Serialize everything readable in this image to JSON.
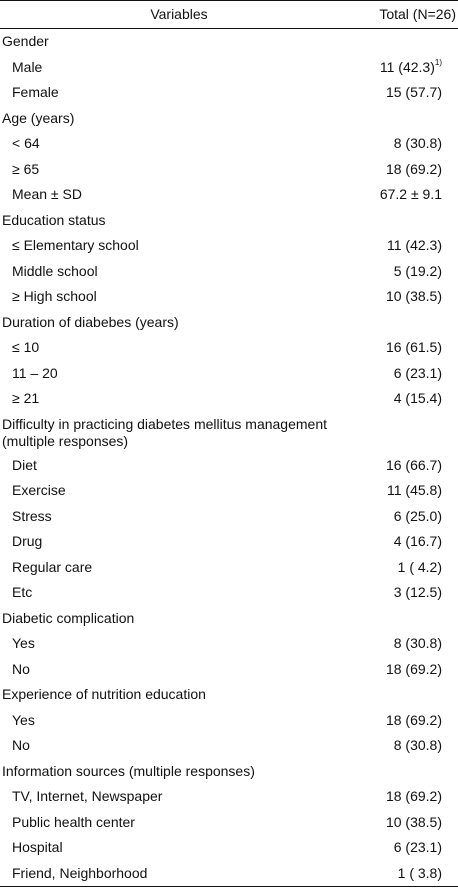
{
  "header": {
    "variables": "Variables",
    "total": "Total (N=26)"
  },
  "sections": [
    {
      "label": "Gender",
      "rows": [
        {
          "label": "Male",
          "value": "11 (42.3)",
          "note": "1)"
        },
        {
          "label": "Female",
          "value": "15 (57.7)"
        }
      ]
    },
    {
      "label": "Age (years)",
      "rows": [
        {
          "label": "< 64",
          "value": "8 (30.8)"
        },
        {
          "label": "≥ 65",
          "value": "18 (69.2)"
        },
        {
          "label": "Mean ± SD",
          "value": "67.2 ± 9.1"
        }
      ]
    },
    {
      "label": "Education status",
      "rows": [
        {
          "label": "≤ Elementary school",
          "value": "11 (42.3)"
        },
        {
          "label": "Middle school",
          "value": "5 (19.2)"
        },
        {
          "label": "≥ High school",
          "value": "10 (38.5)"
        }
      ]
    },
    {
      "label": "Duration of diabebes (years)",
      "rows": [
        {
          "label": "≤ 10",
          "value": "16 (61.5)"
        },
        {
          "label": "11 – 20",
          "value": "6 (23.1)"
        },
        {
          "label": "≥ 21",
          "value": "4 (15.4)"
        }
      ]
    },
    {
      "label": "Difficulty in practicing diabetes mellitus management (multiple responses)",
      "rows": [
        {
          "label": "Diet",
          "value": "16 (66.7)"
        },
        {
          "label": "Exercise",
          "value": "11 (45.8)"
        },
        {
          "label": "Stress",
          "value": "6 (25.0)"
        },
        {
          "label": "Drug",
          "value": "4 (16.7)"
        },
        {
          "label": "Regular care",
          "value": "1 (  4.2)"
        },
        {
          "label": "Etc",
          "value": "3 (12.5)"
        }
      ]
    },
    {
      "label": "Diabetic complication",
      "rows": [
        {
          "label": "Yes",
          "value": "8 (30.8)"
        },
        {
          "label": "No",
          "value": "18 (69.2)"
        }
      ]
    },
    {
      "label": "Experience of nutrition education",
      "rows": [
        {
          "label": "Yes",
          "value": "18 (69.2)"
        },
        {
          "label": "No",
          "value": "8 (30.8)"
        }
      ]
    },
    {
      "label": "Information sources (multiple responses)",
      "rows": [
        {
          "label": "TV, Internet, Newspaper",
          "value": "18 (69.2)"
        },
        {
          "label": "Public health center",
          "value": "10 (38.5)"
        },
        {
          "label": "Hospital",
          "value": "6 (23.1)"
        },
        {
          "label": "Friend, Neighborhood",
          "value": "1 (  3.8)"
        }
      ]
    }
  ]
}
